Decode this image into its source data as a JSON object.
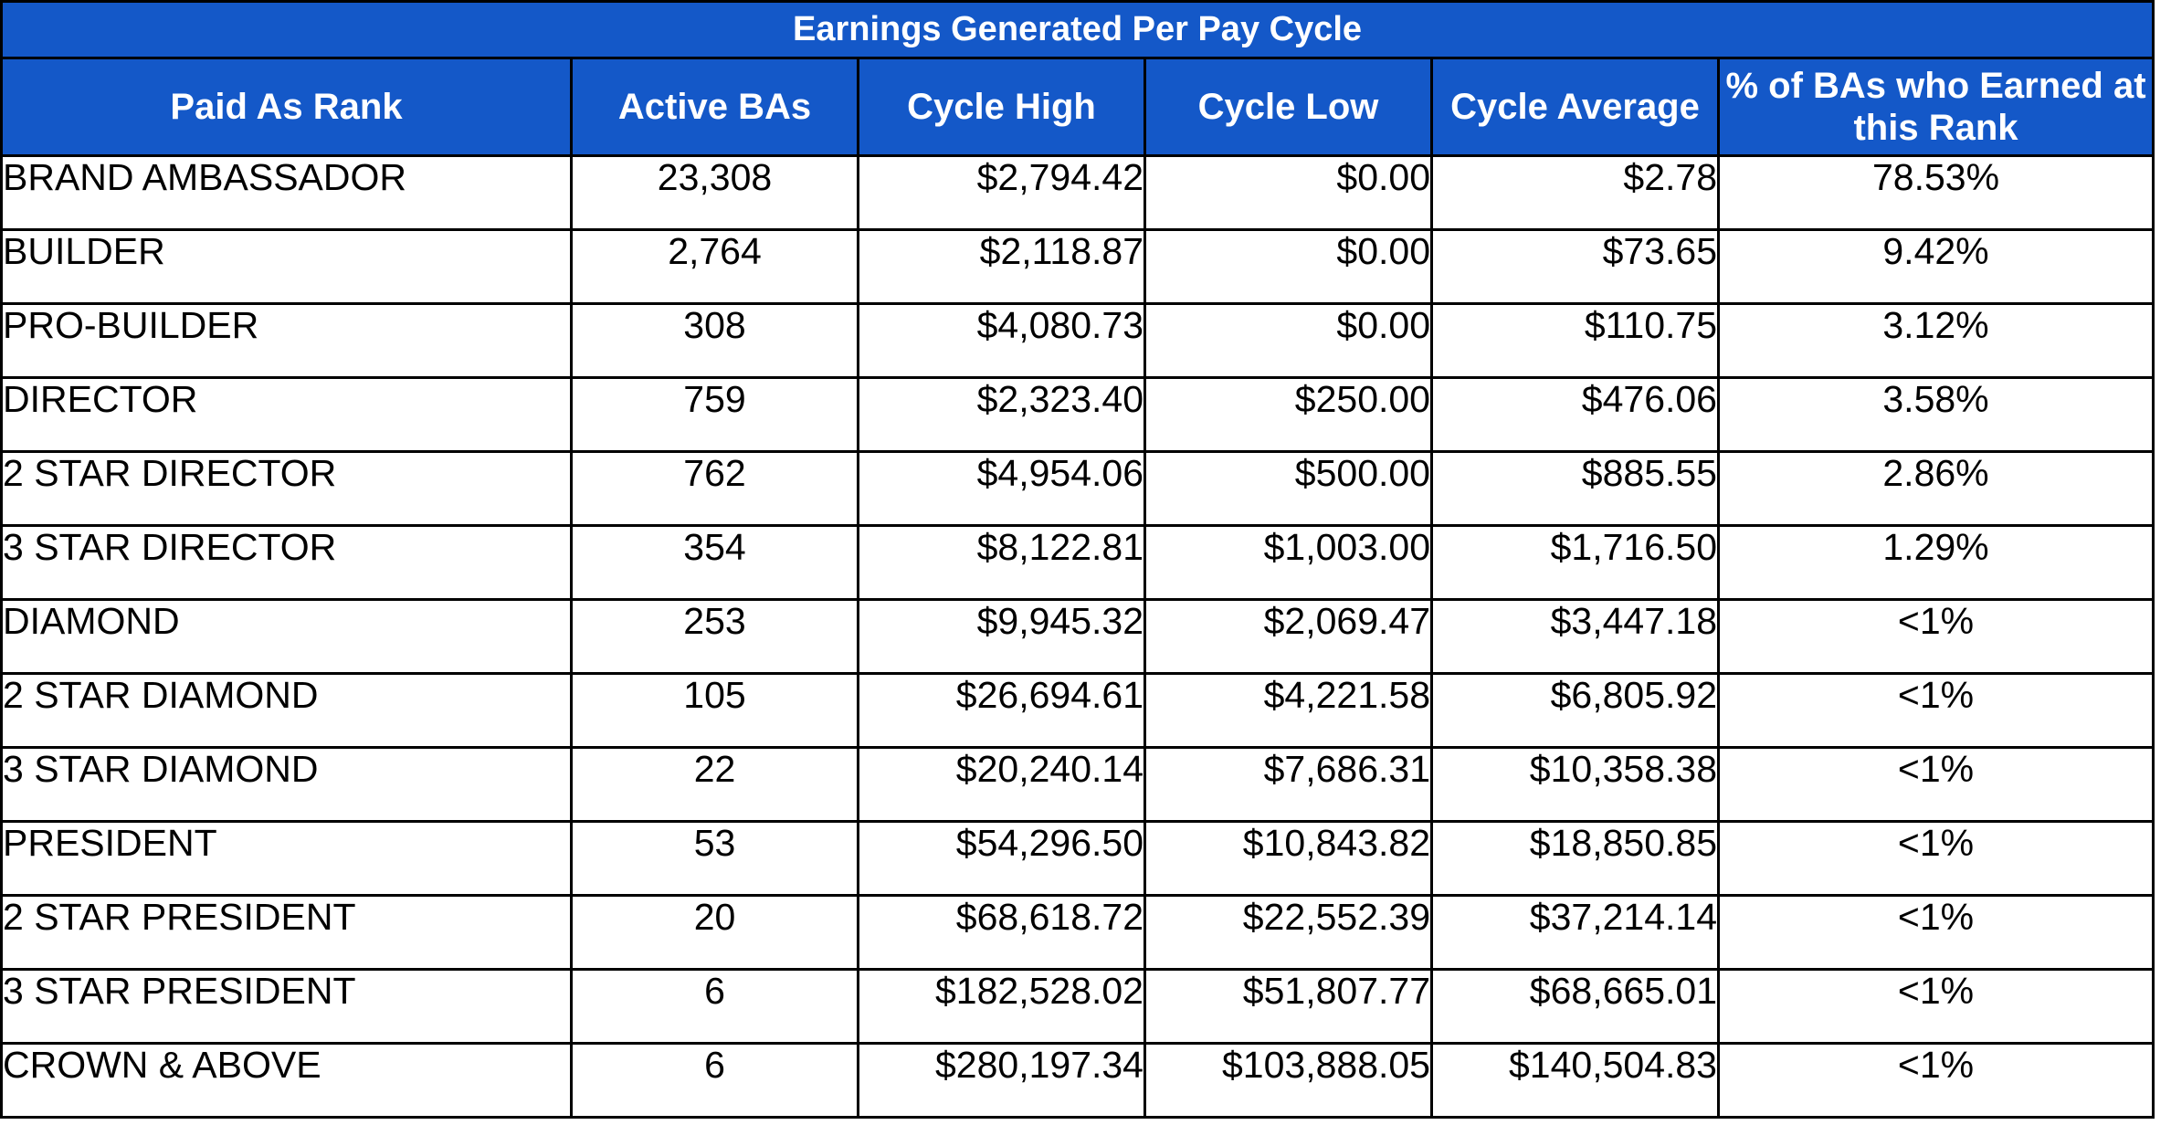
{
  "title": "Earnings Generated Per Pay Cycle",
  "headers": {
    "rank": "Paid As Rank",
    "active": "Active BAs",
    "high": "Cycle High",
    "low": "Cycle Low",
    "average": "Cycle Average",
    "percent": "% of BAs who Earned at this Rank"
  },
  "rows": [
    {
      "rank": "BRAND AMBASSADOR",
      "active": "23,308",
      "high": "$2,794.42",
      "low": "$0.00",
      "average": "$2.78",
      "percent": "78.53%"
    },
    {
      "rank": "BUILDER",
      "active": "2,764",
      "high": "$2,118.87",
      "low": "$0.00",
      "average": "$73.65",
      "percent": "9.42%"
    },
    {
      "rank": "PRO-BUILDER",
      "active": "308",
      "high": "$4,080.73",
      "low": "$0.00",
      "average": "$110.75",
      "percent": "3.12%"
    },
    {
      "rank": "DIRECTOR",
      "active": "759",
      "high": "$2,323.40",
      "low": "$250.00",
      "average": "$476.06",
      "percent": "3.58%"
    },
    {
      "rank": "2 STAR DIRECTOR",
      "active": "762",
      "high": "$4,954.06",
      "low": "$500.00",
      "average": "$885.55",
      "percent": "2.86%"
    },
    {
      "rank": "3 STAR DIRECTOR",
      "active": "354",
      "high": "$8,122.81",
      "low": "$1,003.00",
      "average": "$1,716.50",
      "percent": "1.29%"
    },
    {
      "rank": "DIAMOND",
      "active": "253",
      "high": "$9,945.32",
      "low": "$2,069.47",
      "average": "$3,447.18",
      "percent": "<1%"
    },
    {
      "rank": "2 STAR DIAMOND",
      "active": "105",
      "high": "$26,694.61",
      "low": "$4,221.58",
      "average": "$6,805.92",
      "percent": "<1%"
    },
    {
      "rank": "3 STAR DIAMOND",
      "active": "22",
      "high": "$20,240.14",
      "low": "$7,686.31",
      "average": "$10,358.38",
      "percent": "<1%"
    },
    {
      "rank": "PRESIDENT",
      "active": "53",
      "high": "$54,296.50",
      "low": "$10,843.82",
      "average": "$18,850.85",
      "percent": "<1%"
    },
    {
      "rank": "2 STAR PRESIDENT",
      "active": "20",
      "high": "$68,618.72",
      "low": "$22,552.39",
      "average": "$37,214.14",
      "percent": "<1%"
    },
    {
      "rank": "3 STAR PRESIDENT",
      "active": "6",
      "high": "$182,528.02",
      "low": "$51,807.77",
      "average": "$68,665.01",
      "percent": "<1%"
    },
    {
      "rank": "CROWN & ABOVE",
      "active": "6",
      "high": "$280,197.34",
      "low": "$103,888.05",
      "average": "$140,504.83",
      "percent": "<1%"
    }
  ],
  "colors": {
    "header_background": "#1458c8",
    "header_text": "#ffffff",
    "border": "#000000"
  }
}
